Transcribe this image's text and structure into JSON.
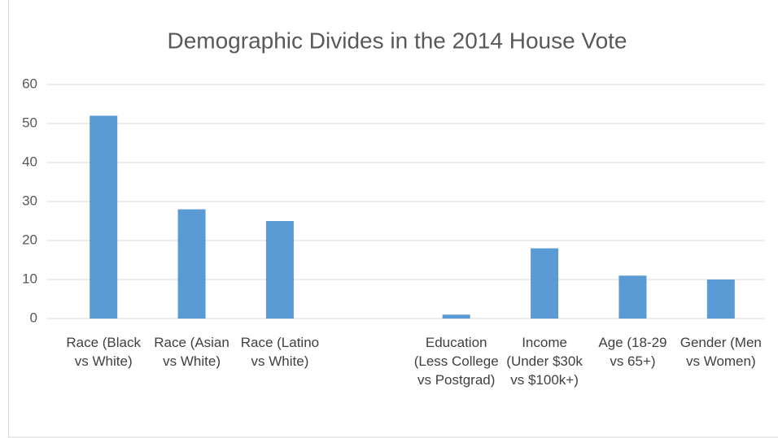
{
  "chart_data": {
    "type": "bar",
    "title": "Demographic Divides in the 2014 House Vote",
    "categories": [
      "Race (Black vs White)",
      "Race (Asian vs White)",
      "Race (Latino vs White)",
      null,
      "Education (Less College vs Postgrad)",
      "Income (Under $30k vs $100k+)",
      "Age (18-29 vs 65+)",
      "Gender (Men vs Women)"
    ],
    "values": [
      52,
      28,
      25,
      null,
      1,
      18,
      11,
      10
    ],
    "color": "#5b9bd5",
    "ylim": [
      0,
      60
    ],
    "yticks": [
      0,
      10,
      20,
      30,
      40,
      50,
      60
    ],
    "grid": true
  }
}
